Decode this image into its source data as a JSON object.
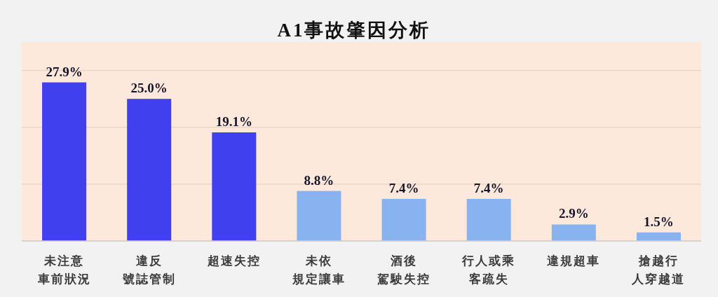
{
  "chart_data": {
    "type": "bar",
    "title": "A1事故肇因分析",
    "categories": [
      "未注意車前狀況",
      "違反號誌管制",
      "超速失控",
      "未依規定讓車",
      "酒後駕駛失控",
      "行人或乘客疏失",
      "違規超車",
      "搶越行人穿越道"
    ],
    "values": [
      27.9,
      25.0,
      19.1,
      8.8,
      7.4,
      7.4,
      2.9,
      1.5
    ],
    "colors": [
      "#4040ee",
      "#4040ee",
      "#4040ee",
      "#88b2f0",
      "#88b2f0",
      "#88b2f0",
      "#88b2f0",
      "#88b2f0"
    ],
    "value_labels": [
      "27.9%",
      "25.0%",
      "19.1%",
      "8.8%",
      "7.4%",
      "7.4%",
      "2.9%",
      "1.5%"
    ],
    "ylim": [
      0,
      35
    ],
    "yticks": [
      {
        "value": 0,
        "label": null
      },
      {
        "value": 10,
        "label": null
      },
      {
        "value": 20,
        "label": null
      },
      {
        "value": 30,
        "label": null
      }
    ],
    "grid": "y",
    "tick_labels": "x"
  }
}
